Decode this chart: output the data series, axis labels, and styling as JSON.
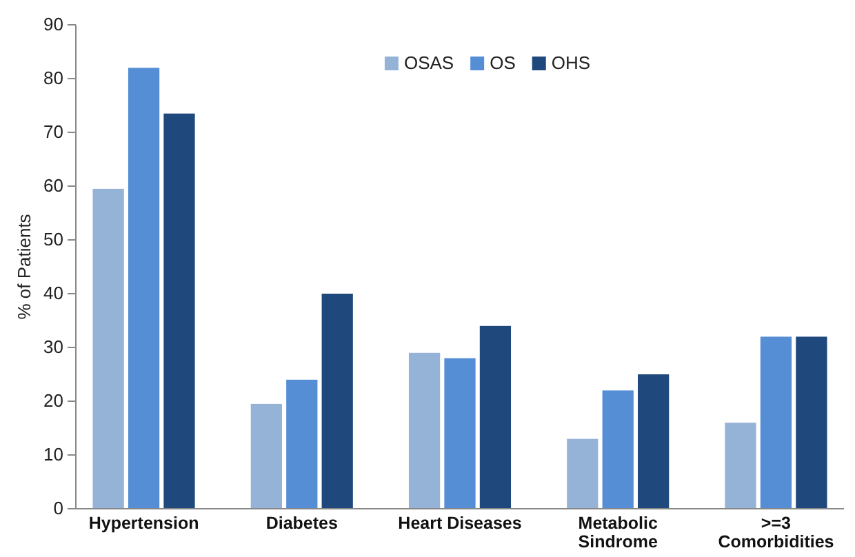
{
  "chart_data": {
    "type": "bar",
    "ylabel": "% of Patients",
    "categories": [
      "Hypertension",
      "Diabetes",
      "Heart Diseases",
      "Metabolic Sindrome",
      ">=3 Comorbidities"
    ],
    "series": [
      {
        "name": "OSAS",
        "color": "#95b3d7",
        "values": [
          59.5,
          19.5,
          29,
          13,
          16
        ]
      },
      {
        "name": "OS",
        "color": "#558ed5",
        "values": [
          82,
          24,
          28,
          22,
          32
        ]
      },
      {
        "name": "OHS",
        "color": "#1f497d",
        "values": [
          73.5,
          40,
          34,
          25,
          32
        ]
      }
    ],
    "ylim": [
      0,
      90
    ],
    "yticks": [
      0,
      10,
      20,
      30,
      40,
      50,
      60,
      70,
      80,
      90
    ],
    "grid": false,
    "legend": "top"
  }
}
